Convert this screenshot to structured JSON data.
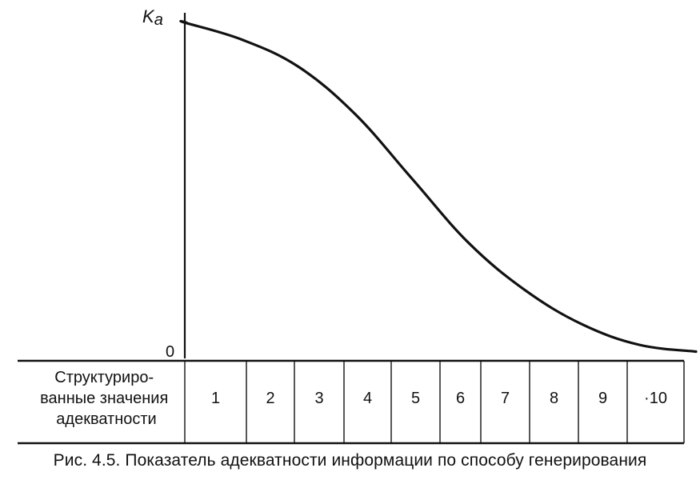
{
  "axis": {
    "y_top_label": "Ka",
    "y_origin_label": "0"
  },
  "table": {
    "row_label_lines": [
      "Структуриро-",
      "ванные значения",
      "адекватности"
    ],
    "cells": [
      "1",
      "2",
      "3",
      "4",
      "5",
      "6",
      "7",
      "8",
      "9",
      "·10"
    ]
  },
  "caption": "Рис. 4.5. Показатель адекватности информации по способу генерирования",
  "chart_data": {
    "type": "line",
    "x": [
      1,
      2,
      3,
      4,
      5,
      6,
      7,
      8,
      9,
      10
    ],
    "y": [
      0.99,
      0.94,
      0.86,
      0.72,
      0.53,
      0.34,
      0.2,
      0.1,
      0.04,
      0.02
    ],
    "ylim": [
      0,
      1
    ]
  }
}
